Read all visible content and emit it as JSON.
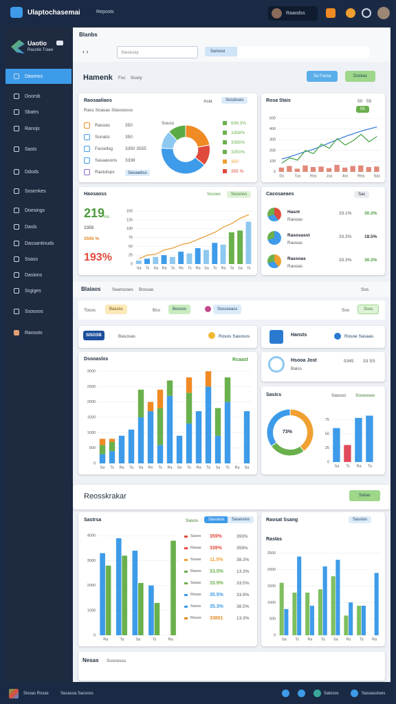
{
  "topbar": {
    "app": "Ulaptochasemai",
    "menu": "Reposts",
    "user": "Raaodss"
  },
  "sidebar": {
    "brand": "Uaotio",
    "tagline": "Racotie Traee",
    "items": [
      "Dasrnos",
      "Doorsb",
      "Sbatrs",
      "Ranojs",
      "Sasts",
      "Ddods",
      "Sosenkes",
      "Doesings",
      "Dasls",
      "Dassantinuds",
      "Ssass",
      "Dasions",
      "Srgiges",
      "Ssosoos",
      "Raosots"
    ]
  },
  "header": {
    "title": "Blanbs",
    "search": "Siesiosiy",
    "tag": "Sanossi"
  },
  "overview": {
    "title": "Hamenk",
    "tabs": [
      "Fsc",
      "Ssory"
    ],
    "buttons": [
      "Sa Fassa",
      "Doskas"
    ]
  },
  "sources": {
    "title": "Raosaaliaos",
    "actions": [
      "Asia",
      "Sosdoses"
    ],
    "subtitle": "Rass Soasas Stassiosss",
    "rows": [
      [
        "Rasoas",
        "350"
      ],
      [
        "Sonatsi",
        "350"
      ],
      [
        "Fassidsg",
        "3350 3555"
      ],
      [
        "Sasaasons",
        "3338"
      ],
      [
        "Rastolsps",
        "Sesaeliss"
      ]
    ],
    "pie_label": "Suuss",
    "legend": [
      "836.3%",
      "3358%",
      "3365%",
      "3350%",
      "350",
      "355 %"
    ],
    "chart": {
      "type": "pie",
      "values": [
        22,
        14,
        40,
        12,
        12
      ],
      "colors": [
        "#f08a24",
        "#e04a3c",
        "#3d9be9",
        "#8cc8f0",
        "#5aab46"
      ],
      "hole": 0.5
    }
  },
  "trend": {
    "title": "Rosa Stais",
    "legend": [
      "50",
      "55",
      "55"
    ],
    "chart": {
      "type": "line",
      "ylim": [
        0,
        500
      ],
      "yticks": [
        0,
        100,
        200,
        300,
        400,
        500
      ],
      "categories": [
        "Ds",
        null,
        "Tus",
        null,
        "Ros",
        null,
        "Jsa",
        null,
        "Ars",
        null,
        "Rea",
        null,
        "Sas"
      ],
      "series": [
        {
          "kind": "bar",
          "color": "#e08a7a",
          "values": [
            40,
            55,
            30,
            60,
            45,
            50,
            35,
            65,
            40,
            55,
            60,
            45,
            50
          ]
        },
        {
          "kind": "line",
          "color": "#3d7fd6",
          "values": [
            120,
            140,
            165,
            190,
            210,
            240,
            270,
            300,
            330,
            355,
            380,
            400,
            420
          ]
        },
        {
          "kind": "line",
          "color": "#4fa64a",
          "values": [
            80,
            130,
            110,
            200,
            170,
            260,
            220,
            310,
            250,
            290,
            350,
            280,
            330
          ]
        }
      ]
    }
  },
  "growth": {
    "title": "Haosaoss",
    "tags": [
      "Sosoes",
      "Soosnos"
    ],
    "stats": [
      "219",
      "%s",
      "2355",
      "3595 %",
      "193%"
    ],
    "chart": {
      "type": "bar",
      "ylim": [
        0,
        160
      ],
      "yticks": [
        0,
        25,
        50,
        75,
        100,
        125,
        150
      ],
      "categories": [
        "Sa",
        "Ts",
        "Sa",
        "Ra",
        "Ta",
        "Rs",
        "Ts",
        "Ra",
        "Sa",
        "To",
        "Ra",
        "Ta",
        "Sa",
        "Ts"
      ],
      "series": [
        {
          "kind": "bar",
          "color": "#8ec8ee",
          "colors": [
            "#8ec8ee",
            "#3d9be9",
            "#8ec8ee",
            "#3d9be9",
            "#8ec8ee",
            "#3d9be9",
            "#8ec8ee",
            "#3d9be9",
            "#8ec8ee",
            "#3d9be9",
            "#8ec8ee",
            "#6ab04c",
            "#6ab04c",
            "#8ec8ee"
          ],
          "values": [
            10,
            15,
            20,
            25,
            20,
            35,
            30,
            45,
            40,
            60,
            55,
            90,
            95,
            120
          ]
        },
        {
          "kind": "line",
          "color": "#e8a13a",
          "values": [
            15,
            25,
            28,
            40,
            45,
            55,
            60,
            70,
            80,
            90,
            105,
            115,
            130,
            140
          ]
        }
      ]
    }
  },
  "channels": {
    "title": "Cacosaeaes",
    "tag": "Sac",
    "rows": [
      [
        "Hasnt",
        "Raosas",
        "33.1%",
        "30.3%"
      ],
      [
        "Rasosasst",
        "Raosas",
        "33.3%",
        "18.5%"
      ],
      [
        "Rassoas",
        "Raosas",
        "33.3%",
        "30.3%"
      ]
    ]
  },
  "business": {
    "title": "Blaiaos",
    "tabs": [
      "Searsoses",
      "Bossas"
    ],
    "action": "Sos",
    "filters": [
      "Tocos",
      "Basoss",
      "Bcs",
      "Bosoos",
      "Sosceoass"
    ],
    "filter_right": "Sos",
    "apply": "Ssos"
  },
  "badge": {
    "label": "SISOSB",
    "text": "Basosas",
    "link": "Rosos Sasosos"
  },
  "market": {
    "title": "Hansts",
    "link": "Rosoe Sasaas"
  },
  "stacked": {
    "title": "Dsooaslos",
    "tag": "Rsaast",
    "chart": {
      "type": "bar",
      "stacked": true,
      "ylim": [
        0,
        3000
      ],
      "yticks": [
        0,
        500,
        1000,
        1500,
        2000,
        2500,
        3000
      ],
      "categories": [
        "Sa",
        "Ts",
        "Ra",
        "Ta",
        "Sa",
        "Rs",
        "Ts",
        "Ra",
        "Sa",
        "To",
        "Ra",
        "Ta",
        "Sa",
        "Ts",
        "Ra",
        "Sa"
      ],
      "series": [
        {
          "kind": "bar",
          "color": "#3d9be9",
          "values": [
            300,
            400,
            900,
            1100,
            1500,
            1700,
            600,
            2200,
            900,
            1300,
            1700,
            2500,
            900,
            2000,
            0,
            1700
          ]
        },
        {
          "kind": "bar",
          "color": "#6ab04c",
          "values": [
            300,
            300,
            0,
            0,
            900,
            0,
            1200,
            500,
            0,
            1000,
            0,
            0,
            900,
            800,
            0,
            0
          ]
        },
        {
          "kind": "bar",
          "color": "#f08a24",
          "values": [
            200,
            100,
            0,
            0,
            0,
            300,
            600,
            0,
            0,
            500,
            0,
            500,
            0,
            0,
            0,
            0
          ]
        }
      ]
    }
  },
  "profile": {
    "title": "Hsooa Jost",
    "sub": "Baiss",
    "values": [
      "5345",
      "33 SS"
    ]
  },
  "split": {
    "title": "Sasics",
    "tabs": [
      "Sasoss",
      "Sosesses"
    ],
    "label": "73%",
    "donut": {
      "type": "pie",
      "values": [
        40,
        25,
        35
      ],
      "colors": [
        "#f0a030",
        "#6ab04c",
        "#3d9be9"
      ],
      "hole": 0.72
    },
    "chart": {
      "type": "bar",
      "ylim": [
        0,
        90
      ],
      "yticks": [
        0,
        25,
        50,
        75
      ],
      "categories": [
        "Sa",
        "Ts",
        "Ra",
        "Ta"
      ],
      "series": [
        {
          "kind": "bar",
          "color": "#3d9be9",
          "colors": [
            "#3d9be9",
            "#e04a5a",
            "#3d9be9",
            "#3d9be9"
          ],
          "values": [
            60,
            30,
            78,
            82
          ]
        }
      ]
    }
  },
  "report": {
    "title": "Reosskrakar",
    "button": "Sokas"
  },
  "sales": {
    "title": "Sastrsa",
    "tabs": [
      "Sasos",
      "Sasoeso",
      "Sasesons"
    ],
    "chart": {
      "type": "bar",
      "ylim": [
        0,
        4200
      ],
      "yticks": [
        0,
        1000,
        2000,
        3000,
        4000
      ],
      "categories": [
        "Ra",
        "Ta",
        "Sa",
        "Ts",
        "Ra"
      ],
      "series": [
        {
          "kind": "bar",
          "color": "#3d9be9",
          "values": [
            3300,
            3900,
            3400,
            2000,
            0
          ]
        },
        {
          "kind": "bar",
          "color": "#6ab04c",
          "values": [
            2800,
            3200,
            2100,
            1300,
            3800
          ]
        }
      ]
    },
    "rows": [
      [
        "Sasos",
        "359%",
        "393%"
      ],
      [
        "Rasas",
        "339%",
        "359%"
      ],
      [
        "Sosas",
        "11.5%",
        "38.3%"
      ],
      [
        "Rasos",
        "33.5%",
        "13.3%"
      ],
      [
        "Sasas",
        "33.9%",
        "33.5%"
      ],
      [
        "Rosas",
        "35.5%",
        "33.9%"
      ],
      [
        "Sasos",
        "35.3%",
        "38.5%"
      ],
      [
        "Rosos",
        "33801",
        "13.3%"
      ]
    ]
  },
  "recent": {
    "title": "Raosat Ssang",
    "button": "Sassios",
    "sub": "Rastas",
    "chart": {
      "type": "bar",
      "ylim": [
        0,
        2600
      ],
      "yticks": [
        0,
        500,
        1000,
        1500,
        2000,
        2500
      ],
      "categories": [
        "Sa",
        "Ts",
        "Ra",
        "Ta",
        "Sa",
        "Rs",
        "Ts",
        "Ra"
      ],
      "series": [
        {
          "kind": "bar",
          "color": "#7fbf5f",
          "values": [
            1600,
            1300,
            1300,
            1400,
            1800,
            600,
            900,
            0
          ]
        },
        {
          "kind": "bar",
          "color": "#3d9be9",
          "values": [
            800,
            2400,
            900,
            2100,
            2300,
            1000,
            900,
            1900
          ]
        }
      ]
    }
  },
  "news": {
    "title": "Nesas",
    "sub": "Sosnosss"
  },
  "footer": {
    "brand": "Sisoas Rosas",
    "text": "Sesasoa Sacsoss",
    "links": [
      "Satosos",
      "Sasoasstoes"
    ]
  }
}
